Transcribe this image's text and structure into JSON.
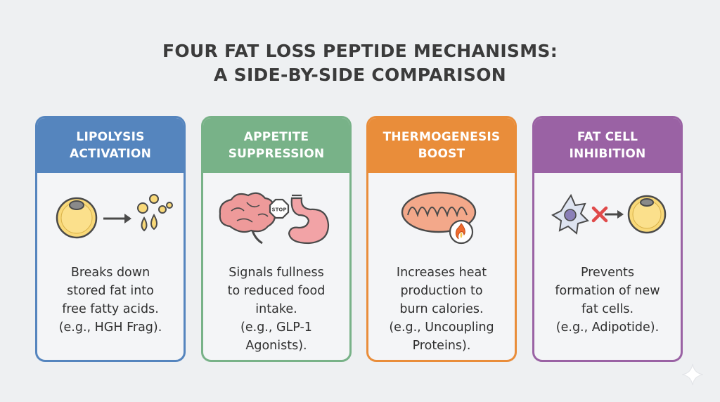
{
  "title": {
    "line1": "FOUR FAT LOSS PEPTIDE MECHANISMS:",
    "line2": "A SIDE-BY-SIDE COMPARISON"
  },
  "cards": [
    {
      "header": [
        "LIPOLYSIS",
        "ACTIVATION"
      ],
      "icon": "fat-cell-releasing-droplets-icon",
      "description": [
        "Breaks down",
        "stored fat into",
        "free fatty acids.",
        "(e.g., HGH Frag)."
      ],
      "color": "#5585be"
    },
    {
      "header": [
        "APPETITE",
        "SUPPRESSION"
      ],
      "icon": "brain-stop-stomach-icon",
      "icon_label": "STOP",
      "description": [
        "Signals fullness",
        "to reduced food",
        "intake.",
        "(e.g., GLP-1",
        "Agonists)."
      ],
      "color": "#78b288"
    },
    {
      "header": [
        "THERMOGENESIS",
        "BOOST"
      ],
      "icon": "mitochondria-flame-icon",
      "description": [
        "Increases heat",
        "production to",
        "burn calories.",
        "(e.g., Uncoupling",
        "Proteins)."
      ],
      "color": "#e98d3a"
    },
    {
      "header": [
        "FAT CELL",
        "INHIBITION"
      ],
      "icon": "stem-cell-blocked-fat-cell-icon",
      "description": [
        "Prevents",
        "formation of new",
        "fat cells.",
        "(e.g., Adipotide)."
      ],
      "color": "#9a62a4"
    }
  ]
}
